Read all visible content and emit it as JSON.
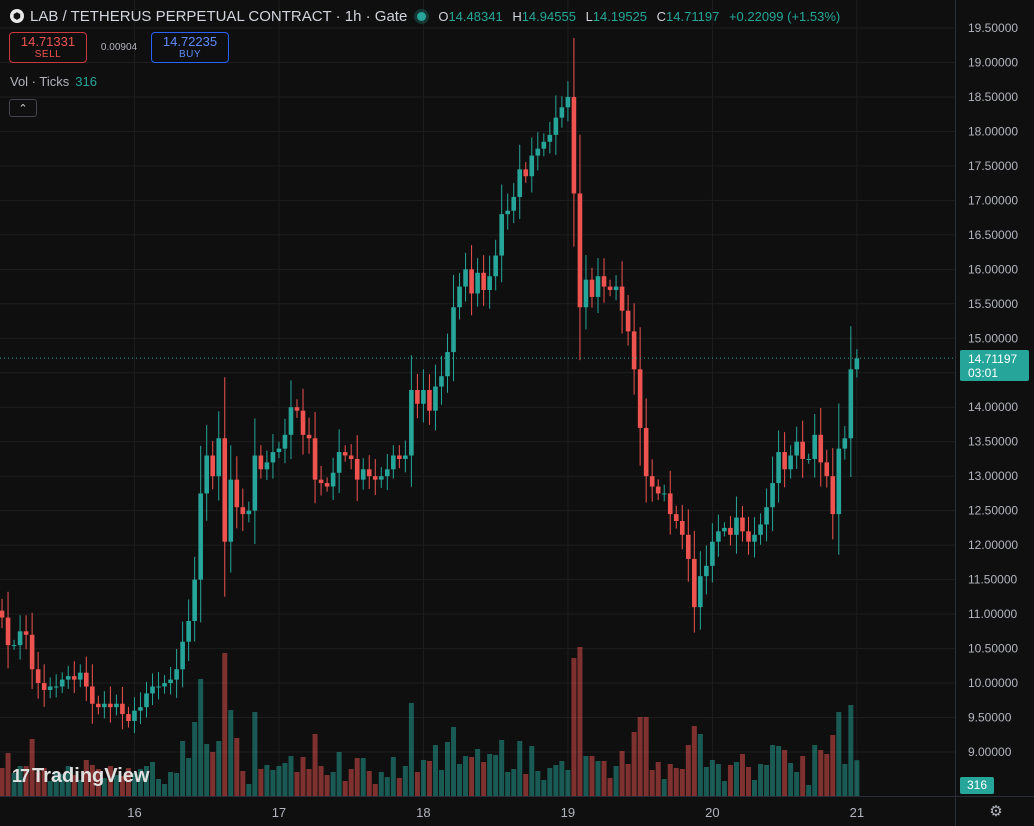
{
  "header": {
    "logo_glyph": "⬢",
    "title": "LAB / TETHERUS PERPETUAL CONTRACT · 1h · Gate",
    "ohlc": {
      "o_label": "O",
      "o": "14.48341",
      "h_label": "H",
      "h": "14.94555",
      "l_label": "L",
      "l": "14.19525",
      "c_label": "C",
      "c": "14.71197",
      "change": "+0.22099 (+1.53%)"
    }
  },
  "trade": {
    "sell_price": "14.71331",
    "sell_label": "SELL",
    "spread": "0.00904",
    "buy_price": "14.72235",
    "buy_label": "BUY"
  },
  "volume_legend": {
    "label": "Vol · Ticks",
    "value": "316"
  },
  "watermark": "TradingView",
  "last_price_tag": {
    "price": "14.71197",
    "countdown": "03:01"
  },
  "volume_tag": "316",
  "colors": {
    "up": "#26a69a",
    "down": "#ef5350",
    "background": "#0f0f0f",
    "grid": "#1e1e1e"
  },
  "chart_data": {
    "type": "candlestick",
    "interval": "1h",
    "ylim": [
      8.5,
      19.7
    ],
    "y_ticks": [
      "9.00000",
      "9.50000",
      "10.00000",
      "10.50000",
      "11.00000",
      "11.50000",
      "12.00000",
      "12.50000",
      "13.00000",
      "13.50000",
      "14.00000",
      "14.50000",
      "15.00000",
      "15.50000",
      "16.00000",
      "16.50000",
      "17.00000",
      "17.50000",
      "18.00000",
      "18.50000",
      "19.00000",
      "19.50000"
    ],
    "x_ticks": [
      "16",
      "17",
      "18",
      "19",
      "20",
      "21"
    ],
    "x_tick_candle_index": [
      23,
      47,
      71,
      95,
      119,
      143
    ],
    "last_price": 14.71197,
    "candles_close": [
      11.05,
      10.95,
      10.55,
      10.55,
      10.75,
      10.7,
      10.2,
      10.0,
      9.9,
      9.95,
      9.95,
      10.05,
      10.1,
      10.05,
      10.15,
      9.95,
      9.7,
      9.65,
      9.7,
      9.65,
      9.7,
      9.55,
      9.45,
      9.6,
      9.65,
      9.85,
      9.95,
      9.95,
      10.0,
      10.05,
      10.2,
      10.6,
      10.9,
      11.5,
      12.75,
      13.3,
      13.0,
      13.55,
      12.05,
      12.95,
      12.55,
      12.45,
      12.5,
      13.3,
      13.1,
      13.2,
      13.35,
      13.4,
      13.6,
      14.0,
      13.95,
      13.6,
      13.55,
      12.95,
      12.9,
      12.85,
      13.05,
      13.35,
      13.3,
      13.25,
      12.95,
      13.1,
      13.0,
      12.95,
      13.0,
      13.1,
      13.3,
      13.25,
      13.3,
      14.25,
      14.05,
      14.25,
      13.95,
      14.3,
      14.45,
      14.8,
      15.45,
      15.75,
      16.0,
      15.65,
      15.95,
      15.7,
      15.9,
      16.2,
      16.8,
      16.85,
      17.05,
      17.45,
      17.35,
      17.65,
      17.75,
      17.85,
      17.95,
      18.2,
      18.35,
      18.5,
      17.1,
      15.45,
      15.85,
      15.6,
      15.9,
      15.75,
      15.7,
      15.75,
      15.4,
      15.1,
      14.55,
      13.7,
      13.0,
      12.85,
      12.75,
      12.75,
      12.45,
      12.35,
      12.15,
      11.8,
      11.1,
      11.55,
      11.7,
      12.05,
      12.2,
      12.25,
      12.15,
      12.4,
      12.2,
      12.05,
      12.15,
      12.3,
      12.55,
      12.9,
      13.35,
      13.1,
      13.3,
      13.5,
      13.25,
      13.25,
      13.6,
      13.2,
      13.0,
      12.45,
      13.4,
      13.55,
      14.55,
      14.71
    ],
    "volume_ticks_max_approx": 1000
  }
}
